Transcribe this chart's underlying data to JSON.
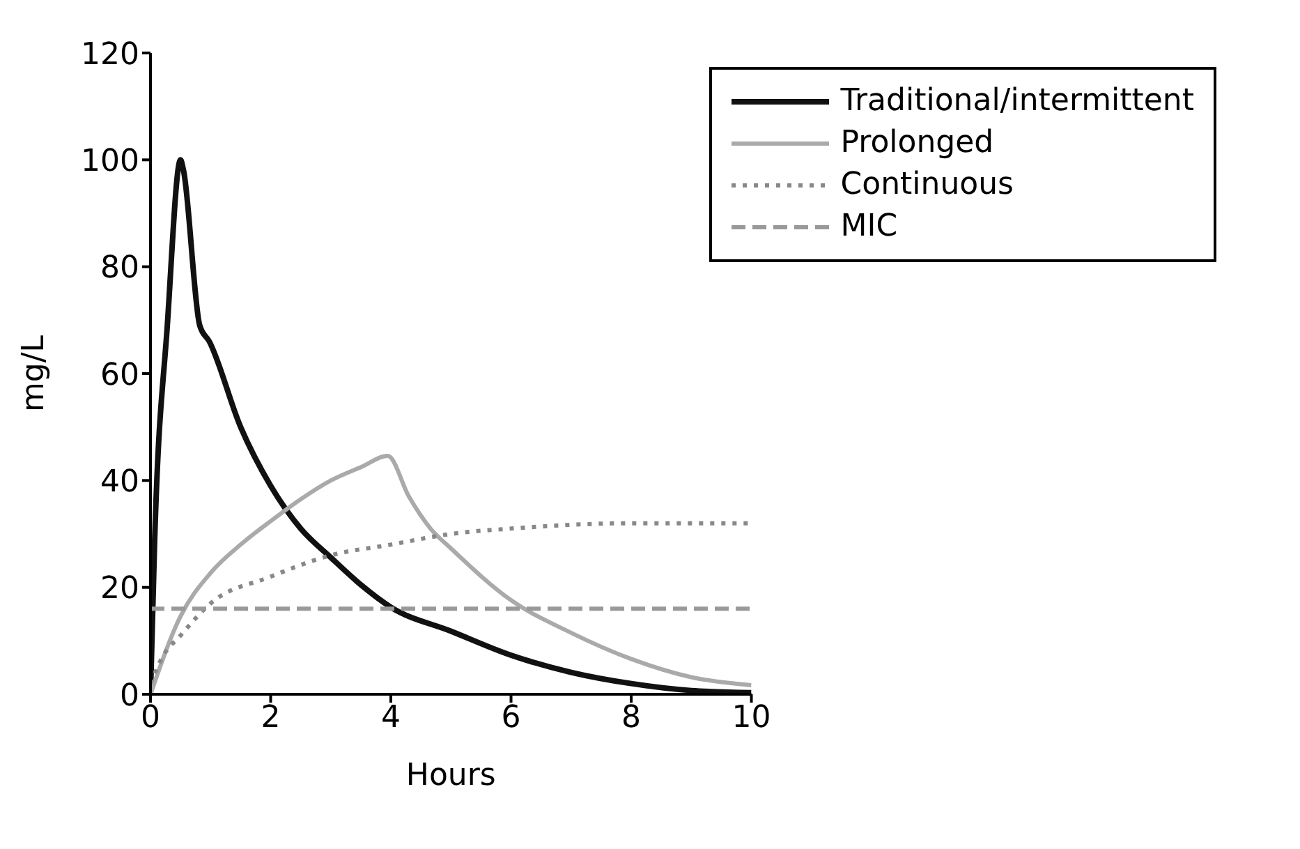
{
  "chart_data": {
    "type": "line",
    "xlabel": "Hours",
    "ylabel": "mg/L",
    "xlim": [
      0,
      10
    ],
    "xticks": [
      0,
      2,
      4,
      6,
      8,
      10
    ],
    "ylim": [
      0,
      120
    ],
    "yticks": [
      0,
      20,
      40,
      60,
      80,
      100,
      120
    ],
    "grid": false,
    "legend": "top right",
    "marker": "none",
    "series": [
      {
        "name": "Traditional/intermittent",
        "color": "#111111",
        "line_style": "solid",
        "x": [
          0,
          0.07,
          0.28,
          0.5,
          0.55,
          0.82,
          0.98,
          1.5,
          2,
          2.5,
          3,
          3.5,
          4,
          5,
          6,
          7,
          8,
          9,
          10
        ],
        "values": [
          0,
          29,
          69,
          100,
          98,
          69,
          66,
          50,
          39,
          31,
          25.6,
          20.5,
          16.3,
          11.8,
          7.3,
          4.1,
          2,
          0.7,
          0.3
        ]
      },
      {
        "name": "Prolonged",
        "color": "#aaaaaa",
        "line_style": "solid",
        "x": [
          0,
          0.5,
          1,
          1.5,
          2,
          2.5,
          3,
          3.5,
          3.95,
          4.3,
          4.66,
          5,
          6,
          7,
          8,
          9,
          10
        ],
        "values": [
          0,
          14.6,
          22.7,
          28,
          32.4,
          36.5,
          40,
          42.5,
          44.6,
          37,
          31,
          27.3,
          17.6,
          11.5,
          6.6,
          3.2,
          1.7
        ]
      },
      {
        "name": "Continuous",
        "color": "#888888",
        "line_style": "dotted",
        "x": [
          0,
          0.2,
          0.5,
          1,
          2,
          3,
          4,
          5,
          6,
          8,
          10
        ],
        "values": [
          2,
          7,
          11,
          17,
          22,
          26,
          28,
          30,
          31,
          32,
          32
        ]
      },
      {
        "name": "MIC",
        "color": "#999999",
        "line_style": "dashed",
        "x": [
          0,
          10
        ],
        "values": [
          16,
          16
        ]
      }
    ]
  }
}
